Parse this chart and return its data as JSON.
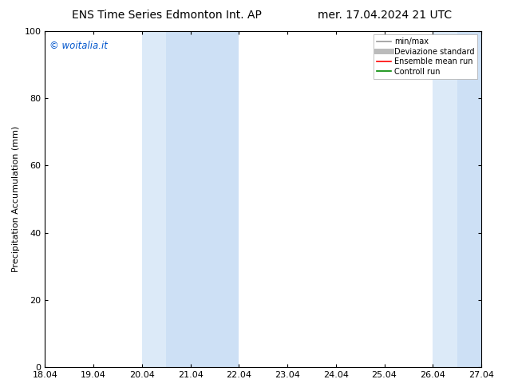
{
  "title_left": "ENS Time Series Edmonton Int. AP",
  "title_right": "mer. 17.04.2024 21 UTC",
  "ylabel": "Precipitation Accumulation (mm)",
  "watermark": "© woitalia.it",
  "watermark_color": "#0055cc",
  "xlim": [
    0,
    9
  ],
  "ylim": [
    0,
    100
  ],
  "yticks": [
    0,
    20,
    40,
    60,
    80,
    100
  ],
  "xtick_positions": [
    0,
    1,
    2,
    3,
    4,
    5,
    6,
    7,
    8,
    9
  ],
  "xtick_labels": [
    "18.04",
    "19.04",
    "20.04",
    "21.04",
    "22.04",
    "23.04",
    "24.04",
    "25.04",
    "26.04",
    "27.04"
  ],
  "shaded_regions": [
    {
      "x_start": 2.0,
      "x_end": 2.5,
      "color": "#dceaf8"
    },
    {
      "x_start": 2.5,
      "x_end": 4.0,
      "color": "#cde0f5"
    },
    {
      "x_start": 8.0,
      "x_end": 8.5,
      "color": "#dceaf8"
    },
    {
      "x_start": 8.5,
      "x_end": 9.0,
      "color": "#cde0f5"
    }
  ],
  "legend_items": [
    {
      "label": "min/max",
      "color": "#999999",
      "lw": 1.2,
      "style": "solid"
    },
    {
      "label": "Deviazione standard",
      "color": "#bbbbbb",
      "lw": 5,
      "style": "solid"
    },
    {
      "label": "Ensemble mean run",
      "color": "#ff0000",
      "lw": 1.2,
      "style": "solid"
    },
    {
      "label": "Controll run",
      "color": "#008800",
      "lw": 1.2,
      "style": "solid"
    }
  ],
  "background_color": "#ffffff",
  "title_fontsize": 10,
  "axis_label_fontsize": 8,
  "tick_fontsize": 8,
  "watermark_fontsize": 8.5,
  "legend_fontsize": 7
}
